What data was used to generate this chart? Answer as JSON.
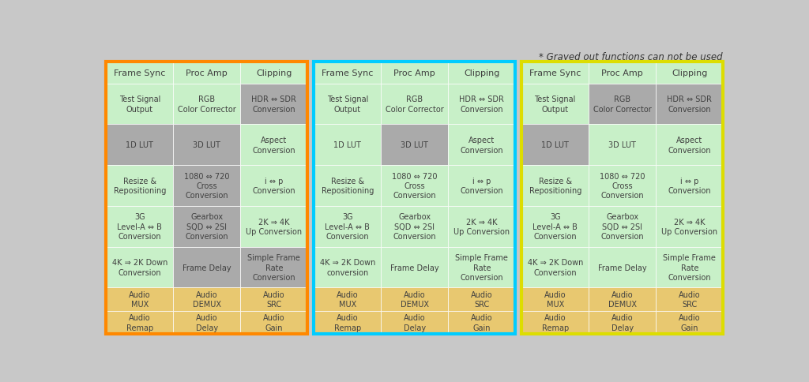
{
  "title_note": "* Grayed out functions can not be used",
  "bg_color": "#c8c8c8",
  "panels": [
    {
      "border_color": "#FF8800",
      "header_row": [
        "Frame Sync",
        "Proc Amp",
        "Clipping"
      ],
      "rows": [
        [
          {
            "text": "Test Signal\nOutput",
            "bg": "#c8f0c8"
          },
          {
            "text": "RGB\nColor Corrector",
            "bg": "#c8f0c8"
          },
          {
            "text": "HDR ⇔ SDR\nConversion",
            "bg": "#aaaaaa"
          }
        ],
        [
          {
            "text": "1D LUT",
            "bg": "#aaaaaa"
          },
          {
            "text": "3D LUT",
            "bg": "#aaaaaa"
          },
          {
            "text": "Aspect\nConversion",
            "bg": "#c8f0c8"
          }
        ],
        [
          {
            "text": "Resize &\nRepositioning",
            "bg": "#c8f0c8"
          },
          {
            "text": "1080 ⇔ 720\nCross\nConversion",
            "bg": "#aaaaaa"
          },
          {
            "text": "i ⇔ p\nConversion",
            "bg": "#c8f0c8"
          }
        ],
        [
          {
            "text": "3G\nLevel-A ⇔ B\nConversion",
            "bg": "#c8f0c8"
          },
          {
            "text": "Gearbox\nSQD ⇔ 2SI\nConversion",
            "bg": "#aaaaaa"
          },
          {
            "text": "2K ⇒ 4K\nUp Conversion",
            "bg": "#c8f0c8"
          }
        ],
        [
          {
            "text": "4K ⇒ 2K Down\nConversion",
            "bg": "#c8f0c8"
          },
          {
            "text": "Frame Delay",
            "bg": "#aaaaaa"
          },
          {
            "text": "Simple Frame\nRate\nConversion",
            "bg": "#aaaaaa"
          }
        ]
      ],
      "audio_rows": [
        [
          {
            "text": "Audio\nMUX",
            "bg": "#e8c870"
          },
          {
            "text": "Audio\nDEMUX",
            "bg": "#e8c870"
          },
          {
            "text": "Audio\nSRC",
            "bg": "#e8c870"
          }
        ],
        [
          {
            "text": "Audio\nRemap",
            "bg": "#e8c870"
          },
          {
            "text": "Audio\nDelay",
            "bg": "#e8c870"
          },
          {
            "text": "Audio\nGain",
            "bg": "#e8c870"
          }
        ]
      ]
    },
    {
      "border_color": "#00CCFF",
      "header_row": [
        "Frame Sync",
        "Proc Amp",
        "Clipping"
      ],
      "rows": [
        [
          {
            "text": "Test Signal\nOutput",
            "bg": "#c8f0c8"
          },
          {
            "text": "RGB\nColor Corrector",
            "bg": "#c8f0c8"
          },
          {
            "text": "HDR ⇔ SDR\nConversion",
            "bg": "#c8f0c8"
          }
        ],
        [
          {
            "text": "1D LUT",
            "bg": "#c8f0c8"
          },
          {
            "text": "3D LUT",
            "bg": "#aaaaaa"
          },
          {
            "text": "Aspect\nConversion",
            "bg": "#c8f0c8"
          }
        ],
        [
          {
            "text": "Resize &\nRepositioning",
            "bg": "#c8f0c8"
          },
          {
            "text": "1080 ⇔ 720\nCross\nConversion",
            "bg": "#c8f0c8"
          },
          {
            "text": "i ⇔ p\nConversion",
            "bg": "#c8f0c8"
          }
        ],
        [
          {
            "text": "3G\nLevel-A ⇔ B\nConversion",
            "bg": "#c8f0c8"
          },
          {
            "text": "Gearbox\nSQD ⇔ 2SI\nConversion",
            "bg": "#c8f0c8"
          },
          {
            "text": "2K ⇒ 4K\nUp Conversion",
            "bg": "#c8f0c8"
          }
        ],
        [
          {
            "text": "4K ⇒ 2K Down\nconversion",
            "bg": "#c8f0c8"
          },
          {
            "text": "Frame Delay",
            "bg": "#c8f0c8"
          },
          {
            "text": "Simple Frame\nRate\nConversion",
            "bg": "#c8f0c8"
          }
        ]
      ],
      "audio_rows": [
        [
          {
            "text": "Audio\nMUX",
            "bg": "#e8c870"
          },
          {
            "text": "Audio\nDEMUX",
            "bg": "#e8c870"
          },
          {
            "text": "Audio\nSRC",
            "bg": "#e8c870"
          }
        ],
        [
          {
            "text": "Audio\nRemap",
            "bg": "#e8c870"
          },
          {
            "text": "Audio\nDelay",
            "bg": "#e8c870"
          },
          {
            "text": "Audio\nGain",
            "bg": "#e8c870"
          }
        ]
      ]
    },
    {
      "border_color": "#DDDD00",
      "header_row": [
        "Frame Sync",
        "Proc Amp",
        "Clipping"
      ],
      "rows": [
        [
          {
            "text": "Test Signal\nOutput",
            "bg": "#c8f0c8"
          },
          {
            "text": "RGB\nColor Corrector",
            "bg": "#aaaaaa"
          },
          {
            "text": "HDR ⇔ SDR\nConversion",
            "bg": "#aaaaaa"
          }
        ],
        [
          {
            "text": "1D LUT",
            "bg": "#aaaaaa"
          },
          {
            "text": "3D LUT",
            "bg": "#c8f0c8"
          },
          {
            "text": "Aspect\nConversion",
            "bg": "#c8f0c8"
          }
        ],
        [
          {
            "text": "Resize &\nRepositioning",
            "bg": "#c8f0c8"
          },
          {
            "text": "1080 ⇔ 720\nCross\nConversion",
            "bg": "#c8f0c8"
          },
          {
            "text": "i ⇔ p\nConversion",
            "bg": "#c8f0c8"
          }
        ],
        [
          {
            "text": "3G\nLevel-A ⇔ B\nConversion",
            "bg": "#c8f0c8"
          },
          {
            "text": "Gearbox\nSQD ⇔ 2SI\nConversion",
            "bg": "#c8f0c8"
          },
          {
            "text": "2K ⇒ 4K\nUp Conversion",
            "bg": "#c8f0c8"
          }
        ],
        [
          {
            "text": "4K ⇒ 2K Down\nConversion",
            "bg": "#c8f0c8"
          },
          {
            "text": "Frame Delay",
            "bg": "#c8f0c8"
          },
          {
            "text": "Simple Frame\nRate\nConversion",
            "bg": "#c8f0c8"
          }
        ]
      ],
      "audio_rows": [
        [
          {
            "text": "Audio\nMUX",
            "bg": "#e8c870"
          },
          {
            "text": "Audio\nDEMUX",
            "bg": "#e8c870"
          },
          {
            "text": "Audio\nSRC",
            "bg": "#e8c870"
          }
        ],
        [
          {
            "text": "Audio\nRemap",
            "bg": "#e8c870"
          },
          {
            "text": "Audio\nDelay",
            "bg": "#e8c870"
          },
          {
            "text": "Audio\nGain",
            "bg": "#e8c870"
          }
        ]
      ]
    }
  ],
  "header_bg": "#c8f0c8",
  "cell_text_color": "#404040",
  "cell_fontsize": 7.0,
  "header_fontsize": 8.0
}
